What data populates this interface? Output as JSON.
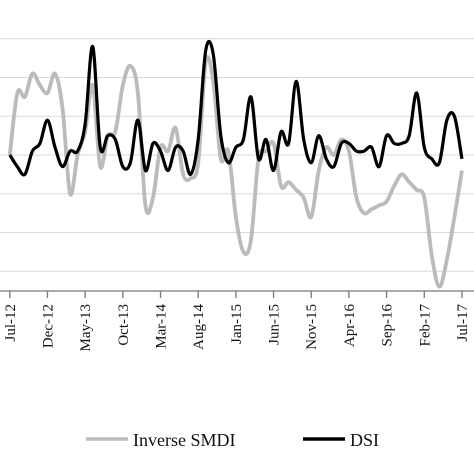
{
  "chart_data": {
    "type": "line",
    "xlabel": "",
    "ylabel": "",
    "ylim": [
      -4,
      4
    ],
    "grid": "horizontal",
    "legend_position": "bottom",
    "x_tick_labels": [
      "Jul-12",
      "Dec-12",
      "May-13",
      "Oct-13",
      "Mar-14",
      "Aug-14",
      "Jan-15",
      "Jun-15",
      "Nov-15",
      "Apr-16",
      "Sep-16",
      "Feb-17",
      "Jul-17"
    ],
    "x_tick_index": [
      0,
      5,
      10,
      15,
      20,
      25,
      30,
      35,
      40,
      45,
      50,
      55,
      60
    ],
    "x_index_range": [
      -1.3,
      61.6
    ],
    "series": [
      {
        "name": "Inverse SMDI",
        "color": "#bbbbbb",
        "values": [
          0,
          1.6,
          1.5,
          2.1,
          1.8,
          1.6,
          2.1,
          1.2,
          -1.0,
          0,
          0.6,
          1.8,
          -0.3,
          0.5,
          0.6,
          1.8,
          2.3,
          1.6,
          -1.3,
          -1.1,
          0.2,
          0.1,
          0.7,
          -0.5,
          -0.6,
          -0.2,
          2.4,
          1.9,
          -0.1,
          0.1,
          -1.6,
          -2.5,
          -2.2,
          -0.1,
          0.1,
          0.3,
          -0.8,
          -0.7,
          -0.9,
          -1.1,
          -1.6,
          -0.4,
          0.2,
          0,
          0.4,
          0.1,
          -1.1,
          -1.5,
          -1.4,
          -1.3,
          -1.2,
          -0.8,
          -0.5,
          -0.7,
          -0.9,
          -1.1,
          -2.6,
          -3.4,
          -2.7,
          -1.6,
          -0.4
        ]
      },
      {
        "name": "DSI",
        "color": "#000000",
        "values": [
          0,
          -0.3,
          -0.5,
          0.1,
          0.3,
          0.9,
          0.2,
          -0.3,
          0.1,
          0.1,
          0.8,
          2.8,
          0.2,
          0.5,
          0.4,
          -0.3,
          -0.2,
          0.9,
          -0.4,
          0.3,
          0.1,
          -0.4,
          0.2,
          0.1,
          -0.5,
          0.4,
          2.7,
          2.6,
          0.5,
          -0.2,
          0.2,
          0.4,
          1.5,
          -0.1,
          0.4,
          -0.4,
          0.6,
          0.3,
          1.9,
          0.4,
          -0.2,
          0.5,
          -0.1,
          -0.3,
          0.3,
          0.3,
          0.1,
          0.1,
          0.2,
          -0.3,
          0.5,
          0.3,
          0.3,
          0.5,
          1.6,
          0.2,
          -0.1,
          -0.2,
          0.9,
          1.0,
          -0.1
        ]
      }
    ]
  }
}
